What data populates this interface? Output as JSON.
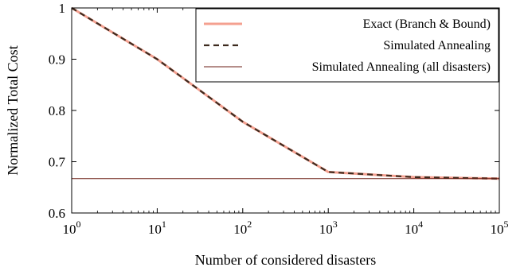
{
  "chart_data": {
    "type": "line",
    "xscale": "log",
    "xlim": [
      1,
      100000
    ],
    "ylim": [
      0.6,
      1.0
    ],
    "xlabel": "Number of considered disasters",
    "ylabel": "Normalized Total Cost",
    "x_ticks": [
      {
        "value": 1,
        "base": "10",
        "exp": "0"
      },
      {
        "value": 10,
        "base": "10",
        "exp": "1"
      },
      {
        "value": 100,
        "base": "10",
        "exp": "2"
      },
      {
        "value": 1000,
        "base": "10",
        "exp": "3"
      },
      {
        "value": 10000,
        "base": "10",
        "exp": "4"
      },
      {
        "value": 100000,
        "base": "10",
        "exp": "5"
      }
    ],
    "y_ticks": [
      {
        "value": 0.6,
        "label": "0.6"
      },
      {
        "value": 0.7,
        "label": "0.7"
      },
      {
        "value": 0.8,
        "label": "0.8"
      },
      {
        "value": 0.9,
        "label": "0.9"
      },
      {
        "value": 1.0,
        "label": "1"
      }
    ],
    "grid": false,
    "legend_position": "top-right",
    "series": [
      {
        "name": "Exact (Branch & Bound)",
        "style": "solid",
        "color": "#f4a090",
        "x": [
          1,
          10,
          100,
          1000,
          10000,
          100000
        ],
        "y": [
          1.0,
          0.9,
          0.778,
          0.68,
          0.67,
          0.667
        ]
      },
      {
        "name": "Simulated Annealing",
        "style": "dashed",
        "color": "#3d2a1e",
        "x": [
          1,
          10,
          100,
          1000,
          10000,
          100000
        ],
        "y": [
          1.0,
          0.9,
          0.778,
          0.68,
          0.67,
          0.667
        ]
      },
      {
        "name": "Simulated Annealing (all disasters)",
        "style": "thin",
        "color": "#6b1e14",
        "x": [
          1,
          100000
        ],
        "y": [
          0.667,
          0.667
        ]
      }
    ]
  }
}
